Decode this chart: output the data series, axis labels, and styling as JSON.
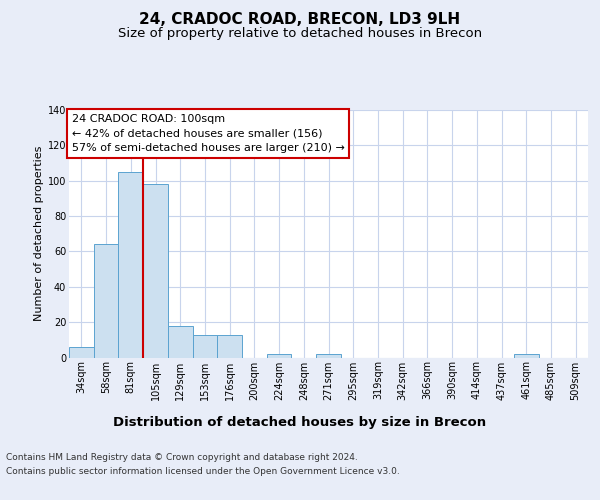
{
  "title": "24, CRADOC ROAD, BRECON, LD3 9LH",
  "subtitle": "Size of property relative to detached houses in Brecon",
  "xlabel": "Distribution of detached houses by size in Brecon",
  "ylabel": "Number of detached properties",
  "footnote1": "Contains HM Land Registry data © Crown copyright and database right 2024.",
  "footnote2": "Contains public sector information licensed under the Open Government Licence v3.0.",
  "annotation_line1": "24 CRADOC ROAD: 100sqm",
  "annotation_line2": "← 42% of detached houses are smaller (156)",
  "annotation_line3": "57% of semi-detached houses are larger (210) →",
  "bins": [
    "34sqm",
    "58sqm",
    "81sqm",
    "105sqm",
    "129sqm",
    "153sqm",
    "176sqm",
    "200sqm",
    "224sqm",
    "248sqm",
    "271sqm",
    "295sqm",
    "319sqm",
    "342sqm",
    "366sqm",
    "390sqm",
    "414sqm",
    "437sqm",
    "461sqm",
    "485sqm",
    "509sqm"
  ],
  "values": [
    6,
    64,
    105,
    98,
    18,
    13,
    13,
    0,
    2,
    0,
    2,
    0,
    0,
    0,
    0,
    0,
    0,
    0,
    2,
    0,
    0
  ],
  "bar_color": "#cce0f0",
  "bar_edge_color": "#5ba3d0",
  "vline_color": "#cc0000",
  "vline_x": 2.5,
  "ylim": [
    0,
    140
  ],
  "yticks": [
    0,
    20,
    40,
    60,
    80,
    100,
    120,
    140
  ],
  "bg_color": "#e8edf8",
  "plot_bg_color": "#ffffff",
  "grid_color": "#c8d4ec",
  "title_fontsize": 11,
  "subtitle_fontsize": 9.5,
  "xlabel_fontsize": 9.5,
  "ylabel_fontsize": 8,
  "tick_fontsize": 7,
  "annotation_fontsize": 8,
  "footnote_fontsize": 6.5
}
